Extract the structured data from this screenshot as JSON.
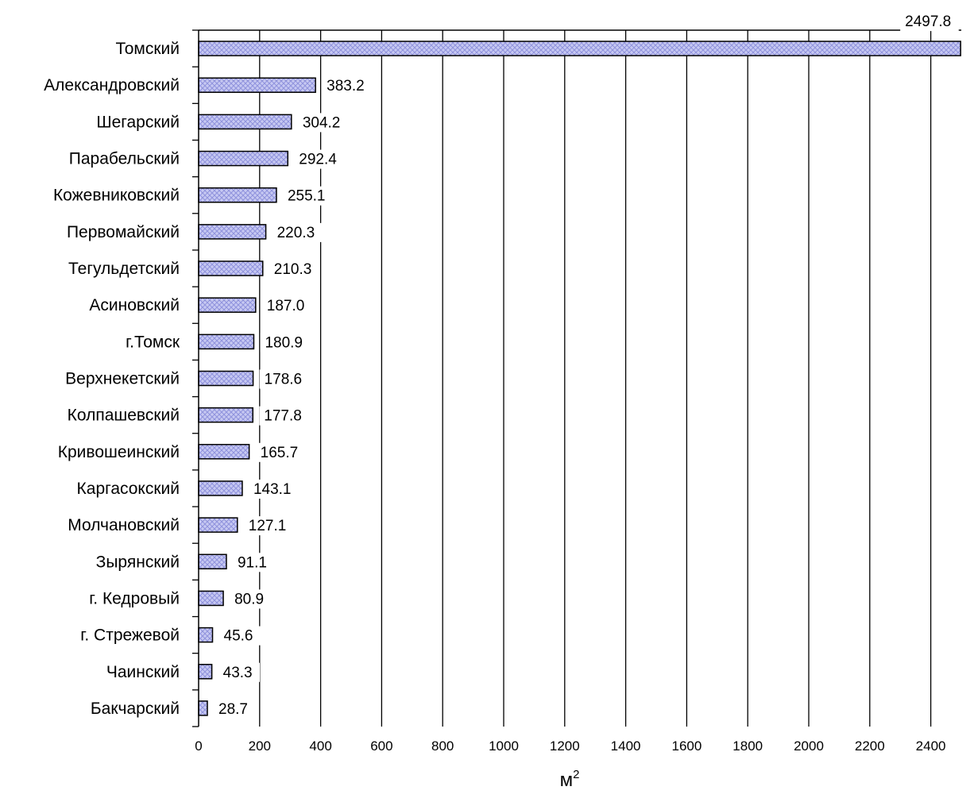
{
  "chart_data": {
    "type": "bar",
    "orientation": "horizontal",
    "title": "",
    "xlabel": "м",
    "xlabel_superscript": "2",
    "ylabel": "",
    "xlim": [
      0,
      2500
    ],
    "x_ticks": [
      0,
      200,
      400,
      600,
      800,
      1000,
      1200,
      1400,
      1600,
      1800,
      2000,
      2200,
      2400
    ],
    "grid": "vertical",
    "legend": "none",
    "bar_fill": "#c7c9f2",
    "bar_pattern_color": "#8f92dd",
    "categories": [
      "Томский",
      "Александровский",
      "Шегарский",
      "Парабельский",
      "Кожевниковский",
      "Первомайский",
      "Тегульдетский",
      "Асиновский",
      "г.Томск",
      "Верхнекетский",
      "Колпашевский",
      "Кривошеинский",
      "Каргасокский",
      "Молчановский",
      "Зырянский",
      "г. Кедровый",
      "г. Стрежевой",
      "Чаинский",
      "Бакчарский"
    ],
    "values": [
      2497.8,
      383.2,
      304.2,
      292.4,
      255.1,
      220.3,
      210.3,
      187.0,
      180.9,
      178.6,
      177.8,
      165.7,
      143.1,
      127.1,
      91.1,
      80.9,
      45.6,
      43.3,
      28.7
    ],
    "value_labels": [
      "2497.8",
      "383.2",
      "304.2",
      "292.4",
      "255.1",
      "220.3",
      "210.3",
      "187.0",
      "180.9",
      "178.6",
      "177.8",
      "165.7",
      "143.1",
      "127.1",
      "91.1",
      "80.9",
      "45.6",
      "43.3",
      "28.7"
    ]
  }
}
